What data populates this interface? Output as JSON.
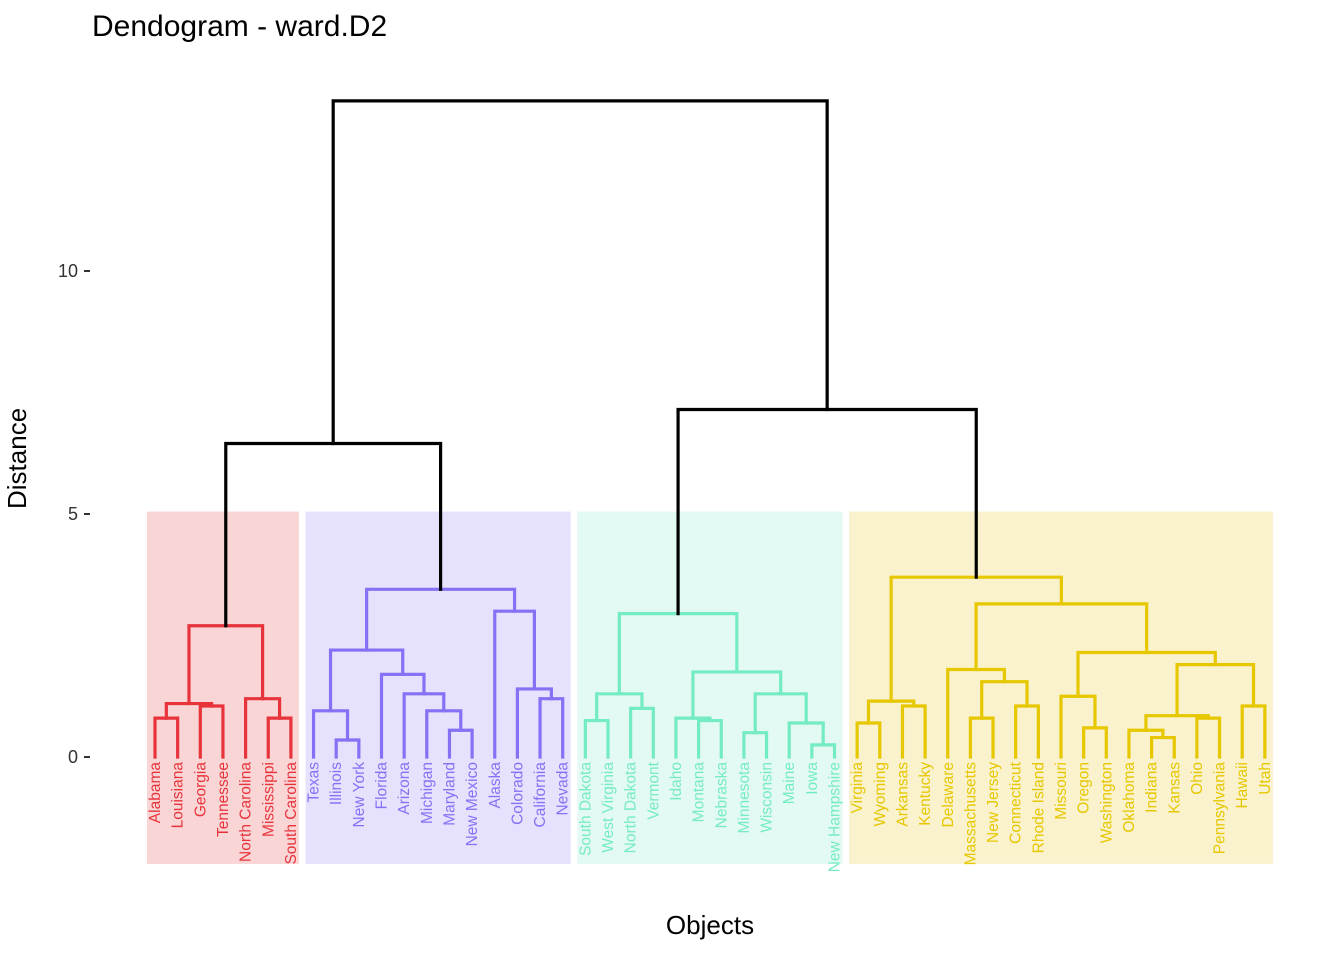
{
  "chart_data": {
    "type": "dendrogram",
    "title": "Dendogram - ward.D2",
    "xlabel": "Objects",
    "ylabel": "Distance",
    "yticks": [
      0,
      5,
      10
    ],
    "ylim": [
      -2.2,
      13.6
    ],
    "grid": false,
    "leaves": [
      "Alabama",
      "Louisiana",
      "Georgia",
      "Tennessee",
      "North Carolina",
      "Mississippi",
      "South Carolina",
      "Texas",
      "Illinois",
      "New York",
      "Florida",
      "Arizona",
      "Michigan",
      "Maryland",
      "New Mexico",
      "Alaska",
      "Colorado",
      "California",
      "Nevada",
      "South Dakota",
      "West Virginia",
      "North Dakota",
      "Vermont",
      "Idaho",
      "Montana",
      "Nebraska",
      "Minnesota",
      "Wisconsin",
      "Maine",
      "Iowa",
      "New Hampshire",
      "Virginia",
      "Wyoming",
      "Arkansas",
      "Kentucky",
      "Delaware",
      "Massachusetts",
      "New Jersey",
      "Connecticut",
      "Rhode Island",
      "Missouri",
      "Oregon",
      "Washington",
      "Oklahoma",
      "Indiana",
      "Kansas",
      "Ohio",
      "Pennsylvania",
      "Hawaii",
      "Utah"
    ],
    "clusters": [
      {
        "range": [
          0,
          6
        ],
        "color": "#E7343B",
        "fill": "#F9D5D6"
      },
      {
        "range": [
          7,
          18
        ],
        "color": "#8471F4",
        "fill": "#E6E2FD"
      },
      {
        "range": [
          19,
          30
        ],
        "color": "#74ECC3",
        "fill": "#E3F9F3"
      },
      {
        "range": [
          31,
          49
        ],
        "color": "#E6C700",
        "fill": "#FAF2CC"
      }
    ],
    "merges": [
      {
        "l": 0,
        "r": 1,
        "h": 0.8
      },
      {
        "l": 2,
        "r": 3,
        "h": 1.05
      },
      {
        "l": -1,
        "r": -2,
        "h": 1.1
      },
      {
        "l": 5,
        "r": 6,
        "h": 0.8
      },
      {
        "l": 4,
        "r": -4,
        "h": 1.2
      },
      {
        "l": -3,
        "r": -5,
        "h": 2.7
      },
      {
        "l": 9,
        "r": 8,
        "h": 0.35
      },
      {
        "l": 7,
        "r": -7,
        "h": 0.95
      },
      {
        "l": 13,
        "r": 14,
        "h": 0.55
      },
      {
        "l": 12,
        "r": -9,
        "h": 0.95
      },
      {
        "l": 11,
        "r": -10,
        "h": 1.3
      },
      {
        "l": 10,
        "r": -11,
        "h": 1.7
      },
      {
        "l": -8,
        "r": -12,
        "h": 2.2
      },
      {
        "l": 17,
        "r": 18,
        "h": 1.2
      },
      {
        "l": 16,
        "r": -14,
        "h": 1.4
      },
      {
        "l": 15,
        "r": -15,
        "h": 3.0
      },
      {
        "l": -13,
        "r": -16,
        "h": 3.45
      },
      {
        "l": -6,
        "r": -17,
        "h": 6.45
      },
      {
        "l": 19,
        "r": 20,
        "h": 0.75
      },
      {
        "l": 22,
        "r": 21,
        "h": 1.0
      },
      {
        "l": -19,
        "r": -20,
        "h": 1.3
      },
      {
        "l": 24,
        "r": 25,
        "h": 0.75
      },
      {
        "l": 23,
        "r": -22,
        "h": 0.8
      },
      {
        "l": 26,
        "r": 27,
        "h": 0.5
      },
      {
        "l": 30,
        "r": 29,
        "h": 0.25
      },
      {
        "l": 28,
        "r": -25,
        "h": 0.7
      },
      {
        "l": -24,
        "r": -26,
        "h": 1.3
      },
      {
        "l": -23,
        "r": -27,
        "h": 1.75
      },
      {
        "l": -21,
        "r": -28,
        "h": 2.95
      },
      {
        "l": 31,
        "r": 32,
        "h": 0.7
      },
      {
        "l": 33,
        "r": 34,
        "h": 1.05
      },
      {
        "l": -30,
        "r": -31,
        "h": 1.15
      },
      {
        "l": 36,
        "r": 37,
        "h": 0.8
      },
      {
        "l": 38,
        "r": 39,
        "h": 1.05
      },
      {
        "l": -33,
        "r": -34,
        "h": 1.55
      },
      {
        "l": 35,
        "r": -35,
        "h": 1.8
      },
      {
        "l": 41,
        "r": 42,
        "h": 0.6
      },
      {
        "l": 40,
        "r": -37,
        "h": 1.25
      },
      {
        "l": 44,
        "r": 45,
        "h": 0.4
      },
      {
        "l": 43,
        "r": -39,
        "h": 0.55
      },
      {
        "l": 46,
        "r": 47,
        "h": 0.8
      },
      {
        "l": -40,
        "r": -41,
        "h": 0.85
      },
      {
        "l": 48,
        "r": 49,
        "h": 1.05
      },
      {
        "l": -42,
        "r": -43,
        "h": 1.9
      },
      {
        "l": -38,
        "r": -44,
        "h": 2.15
      },
      {
        "l": -36,
        "r": -45,
        "h": 3.15
      },
      {
        "l": -32,
        "r": -46,
        "h": 3.7
      },
      {
        "l": -29,
        "r": -47,
        "h": 7.15
      },
      {
        "l": -18,
        "r": -48,
        "h": 13.5
      }
    ]
  }
}
